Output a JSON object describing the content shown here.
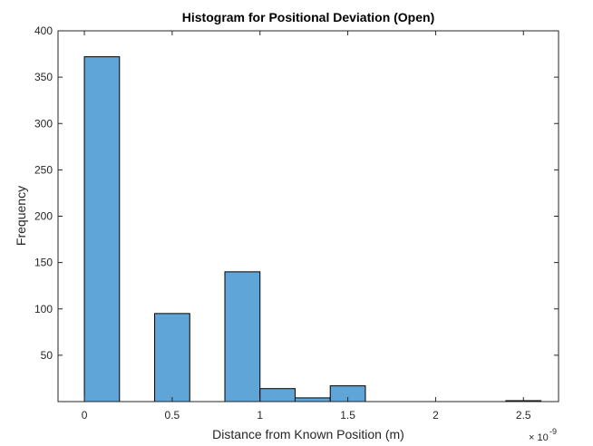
{
  "chart_data": {
    "type": "bar",
    "title": "Histogram for Positional Deviation (Open)",
    "xlabel": "Distance from Known Position (m)",
    "ylabel": "Frequency",
    "x_exponent_base": "× 10",
    "x_exponent_power": "-9",
    "bin_width": 0.2,
    "bins": [
      {
        "start": 0.0,
        "end": 0.2,
        "value": 372
      },
      {
        "start": 0.4,
        "end": 0.6,
        "value": 95
      },
      {
        "start": 0.8,
        "end": 1.0,
        "value": 140
      },
      {
        "start": 1.0,
        "end": 1.2,
        "value": 14
      },
      {
        "start": 1.2,
        "end": 1.4,
        "value": 4
      },
      {
        "start": 1.4,
        "end": 1.6,
        "value": 17
      },
      {
        "start": 2.4,
        "end": 2.6,
        "value": 1
      }
    ],
    "xlim": [
      -0.15,
      2.7
    ],
    "ylim": [
      0,
      400
    ],
    "xticks": [
      0,
      0.5,
      1,
      1.5,
      2,
      2.5
    ],
    "xtick_labels": [
      "0",
      "0.5",
      "1",
      "1.5",
      "2",
      "2.5"
    ],
    "yticks": [
      50,
      100,
      150,
      200,
      250,
      300,
      350,
      400
    ],
    "ytick_labels": [
      "50",
      "100",
      "150",
      "200",
      "250",
      "300",
      "350",
      "400"
    ],
    "bar_color": "#5fa5d8",
    "edge_color": "#000000",
    "grid": false
  }
}
